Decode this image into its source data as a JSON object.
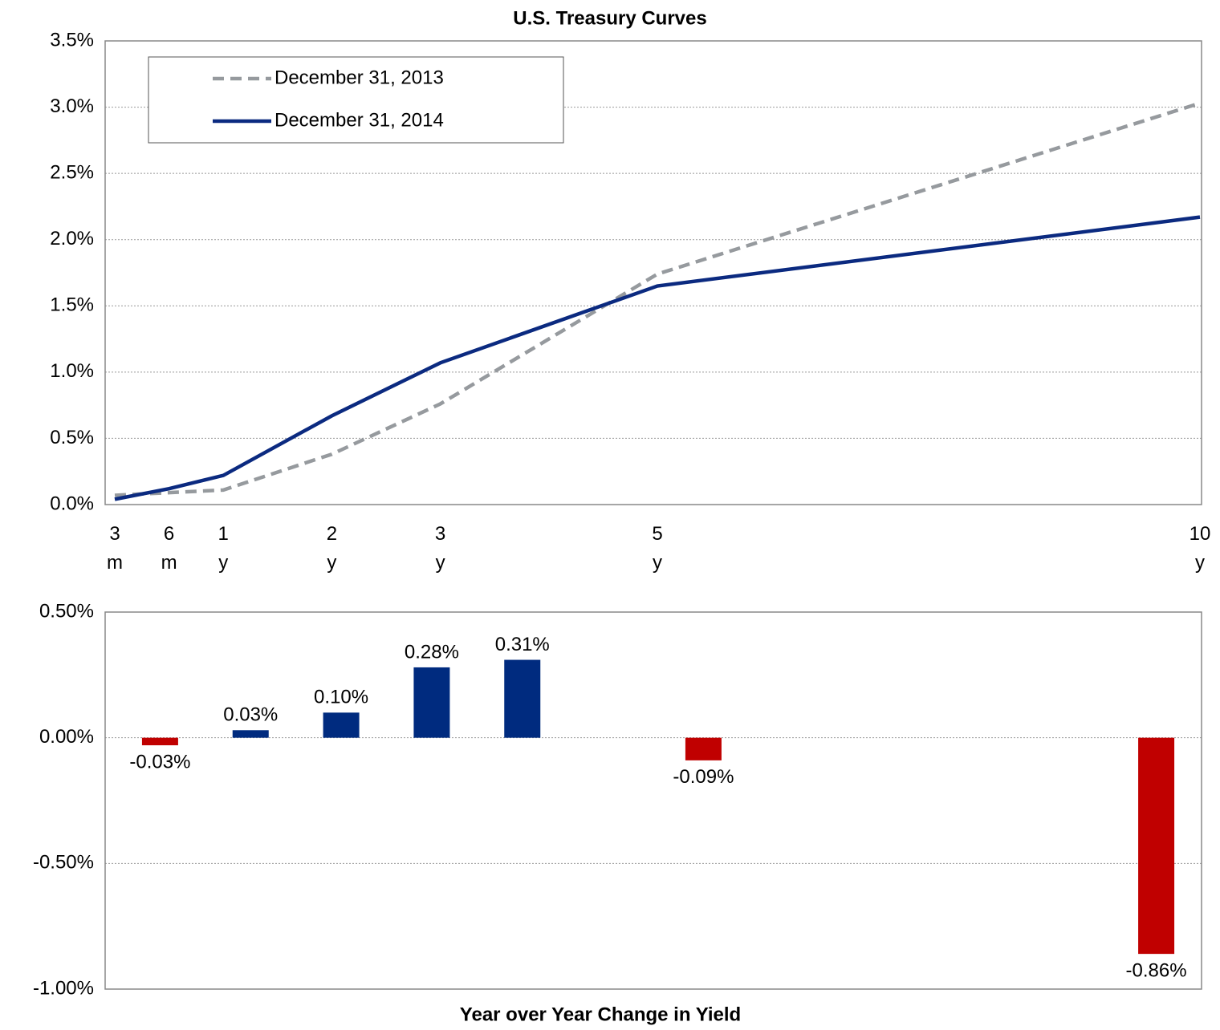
{
  "chart_data": [
    {
      "type": "line",
      "title": "U.S. Treasury Curves",
      "x": [
        0,
        0.5,
        1,
        2,
        3,
        5,
        10
      ],
      "xlim": [
        0,
        10
      ],
      "xticks": [
        {
          "value": 0,
          "label": "3 m"
        },
        {
          "value": 0.5,
          "label": "6 m"
        },
        {
          "value": 1,
          "label": "1 y"
        },
        {
          "value": 2,
          "label": "2 y"
        },
        {
          "value": 3,
          "label": "3 y"
        },
        {
          "value": 5,
          "label": "5 y"
        },
        {
          "value": 10,
          "label": "10 y"
        }
      ],
      "ylim": [
        0,
        3.5
      ],
      "yticks": [
        {
          "value": 0,
          "label": "0.0%"
        },
        {
          "value": 0.5,
          "label": "0.5%"
        },
        {
          "value": 1,
          "label": "1.0%"
        },
        {
          "value": 1.5,
          "label": "1.5%"
        },
        {
          "value": 2,
          "label": "2.0%"
        },
        {
          "value": 2.5,
          "label": "2.5%"
        },
        {
          "value": 3,
          "label": "3.0%"
        },
        {
          "value": 3.5,
          "label": "3.5%"
        }
      ],
      "grid": true,
      "legend": "upper left",
      "series": [
        {
          "name": "December 31, 2013",
          "color": "#969a9e",
          "dashed": true,
          "values": [
            0.07,
            0.09,
            0.11,
            0.38,
            0.76,
            1.74,
            3.03
          ]
        },
        {
          "name": "December 31, 2014",
          "color": "#0b2a80",
          "dashed": false,
          "values": [
            0.04,
            0.12,
            0.22,
            0.67,
            1.07,
            1.65,
            2.17
          ]
        }
      ]
    },
    {
      "type": "bar",
      "title": "Year over Year Change in Yield",
      "categories": [
        null,
        null,
        null,
        null,
        null,
        null,
        null,
        null,
        null,
        null,
        null,
        null
      ],
      "values": [
        -0.03,
        0.03,
        0.1,
        0.28,
        0.31,
        null,
        -0.09,
        null,
        null,
        null,
        null,
        -0.86
      ],
      "value_labels": [
        "-0.03%",
        "0.03%",
        "0.10%",
        "0.28%",
        "0.31%",
        null,
        "-0.09%",
        null,
        null,
        null,
        null,
        "-0.86%"
      ],
      "colors": [
        "#c00000",
        "#002b7f",
        "#002b7f",
        "#002b7f",
        "#002b7f",
        null,
        "#c00000",
        null,
        null,
        null,
        null,
        "#c00000"
      ],
      "ylim": [
        -1,
        0.5
      ],
      "yticks": [
        {
          "value": -1,
          "label": "-1.00%"
        },
        {
          "value": -0.5,
          "label": "-0.50%"
        },
        {
          "value": 0,
          "label": "0.00%"
        },
        {
          "value": 0.5,
          "label": "0.50%"
        }
      ],
      "grid": true
    }
  ]
}
